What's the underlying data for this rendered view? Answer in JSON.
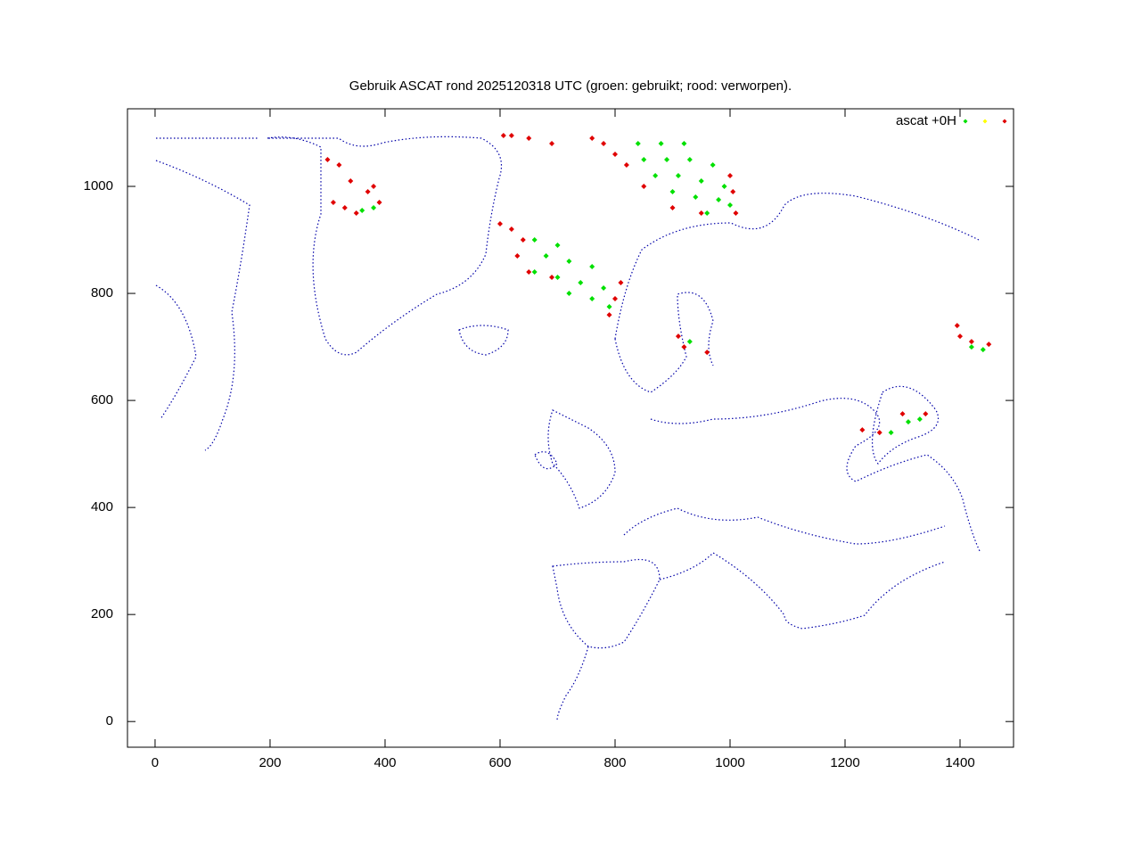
{
  "chart_data": {
    "type": "scatter",
    "title": "Gebruik ASCAT rond 2025120318 UTC (groen: gebruikt; rood: verworpen).",
    "xlim": [
      -48,
      1493
    ],
    "ylim": [
      -48,
      1145
    ],
    "xticks": [
      0,
      200,
      400,
      600,
      800,
      1000,
      1200,
      1400
    ],
    "yticks": [
      0,
      200,
      400,
      600,
      800,
      1000
    ],
    "legend": "top-right",
    "series": [
      {
        "name": "ascat +0H",
        "color": "#00e000",
        "x": [
          840,
          880,
          920,
          850,
          890,
          930,
          970,
          870,
          910,
          950,
          990,
          900,
          940,
          980,
          960,
          1000,
          660,
          700,
          680,
          720,
          760,
          700,
          740,
          780,
          720,
          760,
          790,
          660,
          360,
          380,
          930,
          1280,
          1310,
          1330,
          1420,
          1440
        ],
        "y": [
          1080,
          1080,
          1080,
          1050,
          1050,
          1050,
          1040,
          1020,
          1020,
          1010,
          1000,
          990,
          980,
          975,
          950,
          965,
          900,
          890,
          870,
          860,
          850,
          830,
          820,
          810,
          800,
          790,
          775,
          840,
          955,
          960,
          710,
          540,
          560,
          565,
          700,
          695
        ]
      },
      {
        "color": "#ffff00",
        "x": [],
        "y": []
      },
      {
        "color": "#e00000",
        "x": [
          760,
          780,
          800,
          820,
          850,
          900,
          950,
          1010,
          1005,
          1000,
          606,
          620,
          650,
          690,
          300,
          320,
          340,
          310,
          330,
          370,
          380,
          390,
          350,
          600,
          620,
          640,
          630,
          650,
          690,
          790,
          800,
          810,
          910,
          920,
          960,
          1230,
          1260,
          1300,
          1340,
          1395,
          1400,
          1420,
          1450
        ],
        "y": [
          1090,
          1080,
          1060,
          1040,
          1000,
          960,
          950,
          950,
          990,
          1020,
          1095,
          1095,
          1090,
          1080,
          1050,
          1040,
          1010,
          970,
          960,
          990,
          1000,
          970,
          950,
          930,
          920,
          900,
          870,
          840,
          830,
          760,
          790,
          820,
          720,
          700,
          690,
          545,
          540,
          575,
          575,
          740,
          720,
          710,
          705
        ]
      }
    ]
  }
}
